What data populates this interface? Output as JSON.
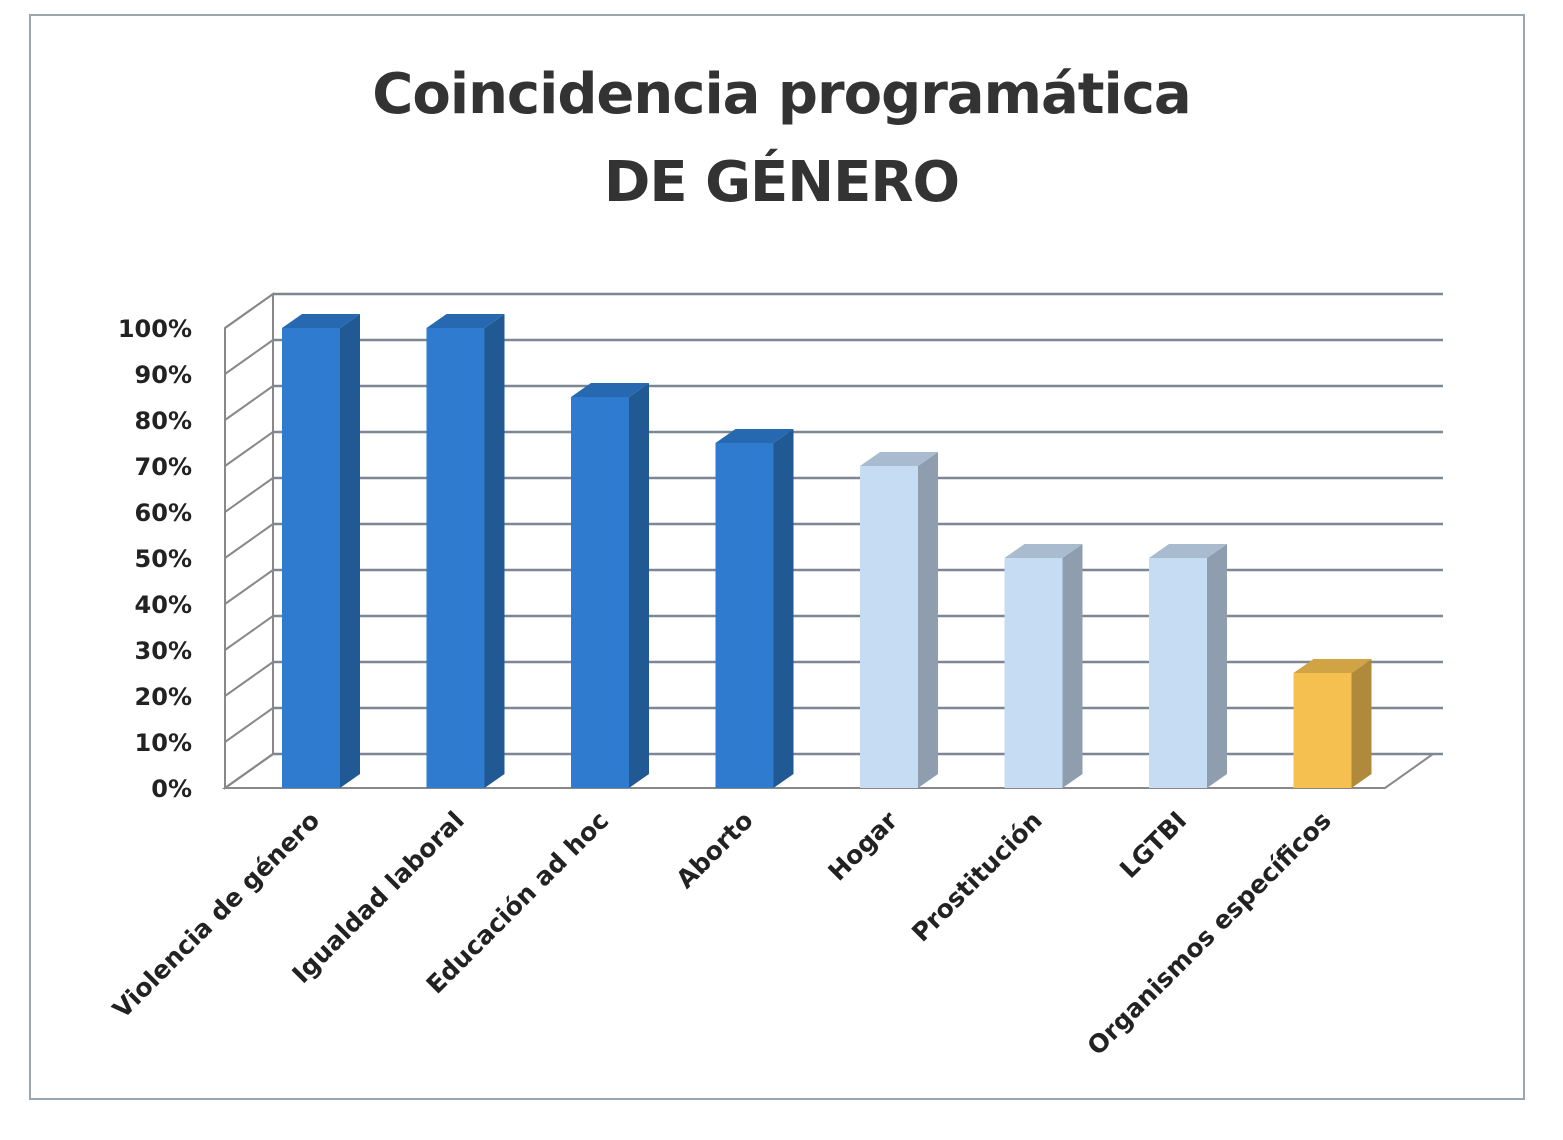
{
  "chart_data": {
    "type": "bar",
    "style": "3d-column",
    "title": "Coincidencia programática",
    "subtitle": "DE GÉNERO",
    "xlabel": "",
    "ylabel": "",
    "ylim": [
      0,
      100
    ],
    "y_unit": "%",
    "y_ticks": [
      "0%",
      "10%",
      "20%",
      "30%",
      "40%",
      "50%",
      "60%",
      "70%",
      "80%",
      "90%",
      "100%"
    ],
    "grid": true,
    "legend": "none",
    "categories": [
      "Violencia de género",
      "Igualdad laboral",
      "Educación ad hoc",
      "Aborto",
      "Hogar",
      "Prostitución",
      "LGTBI",
      "Organismos específicos"
    ],
    "values": [
      100,
      100,
      85,
      75,
      70,
      50,
      50,
      25
    ],
    "bar_colors": [
      "#2e7bcf",
      "#2e7bcf",
      "#2e7bcf",
      "#2e7bcf",
      "#c6dcf3",
      "#c6dcf3",
      "#c6dcf3",
      "#f5c050"
    ]
  }
}
